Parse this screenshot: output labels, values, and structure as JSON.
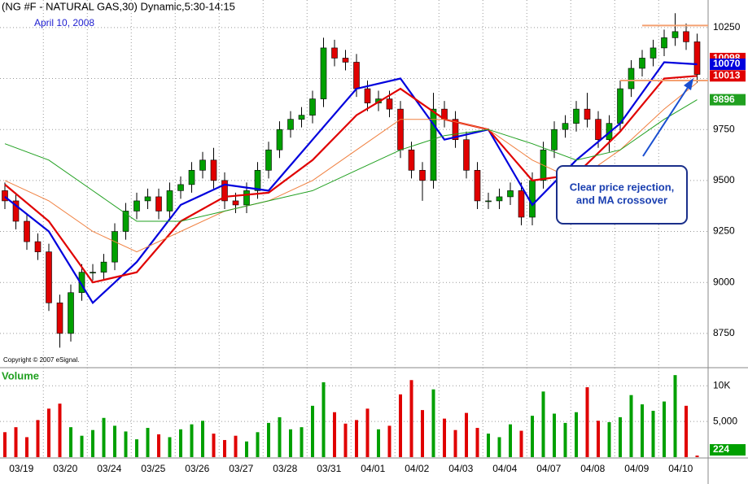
{
  "chart_data": {
    "type": "candlestick",
    "title": "(NG #F - NATURAL GAS,30) Dynamic,5:30-14:15",
    "date_label": "April 10, 2008",
    "copyright": "Copyright © 2007 eSignal.",
    "annotation": [
      "Clear price rejection,",
      "and MA crossover"
    ],
    "categories": [
      null,
      null,
      "03/19",
      null,
      null,
      null,
      "03/20",
      null,
      null,
      null,
      "03/24",
      null,
      null,
      null,
      "03/25",
      null,
      null,
      null,
      "03/26",
      null,
      null,
      null,
      "03/27",
      null,
      null,
      null,
      "03/28",
      null,
      null,
      null,
      "03/31",
      null,
      null,
      null,
      "04/01",
      null,
      null,
      null,
      "04/02",
      null,
      null,
      null,
      "04/03",
      null,
      null,
      null,
      "04/04",
      null,
      null,
      null,
      "04/07",
      null,
      null,
      null,
      "04/08",
      null,
      null,
      null,
      "04/09",
      null,
      null,
      null,
      "04/10",
      null
    ],
    "open": [
      9450,
      9400,
      9300,
      9200,
      9150,
      8900,
      8750,
      8950,
      9050,
      9050,
      9100,
      9250,
      9350,
      9400,
      9420,
      9350,
      9450,
      9480,
      9550,
      9600,
      9500,
      9400,
      9380,
      9450,
      9550,
      9650,
      9750,
      9800,
      9820,
      9900,
      10150,
      10100,
      10080,
      9950,
      9880,
      9900,
      9850,
      9650,
      9550,
      9500,
      9850,
      9800,
      9700,
      9550,
      9400,
      9400,
      9420,
      9450,
      9320,
      9500,
      9650,
      9750,
      9780,
      9850,
      9800,
      9700,
      9780,
      9950,
      10050,
      10100,
      10150,
      10200,
      10230,
      10180
    ],
    "high": [
      9490,
      9440,
      9340,
      9240,
      9190,
      8940,
      8990,
      9090,
      9090,
      9140,
      9290,
      9390,
      9440,
      9460,
      9460,
      9490,
      9520,
      9590,
      9640,
      9660,
      9540,
      9440,
      9490,
      9590,
      9690,
      9790,
      9840,
      9860,
      9940,
      10200,
      10190,
      10140,
      10120,
      9990,
      9940,
      9940,
      9890,
      9690,
      9590,
      9930,
      9890,
      9840,
      9740,
      9590,
      9440,
      9460,
      9490,
      9490,
      9540,
      9690,
      9790,
      9820,
      9890,
      9930,
      9840,
      9820,
      9990,
      10090,
      10140,
      10190,
      10240,
      10320,
      10270,
      10220
    ],
    "low": [
      9360,
      9260,
      9160,
      9110,
      8860,
      8680,
      8710,
      8910,
      9010,
      9010,
      9060,
      9210,
      9310,
      9360,
      9310,
      9310,
      9410,
      9440,
      9510,
      9460,
      9360,
      9340,
      9340,
      9410,
      9510,
      9610,
      9710,
      9760,
      9780,
      9860,
      10060,
      10040,
      9910,
      9840,
      9840,
      9810,
      9610,
      9510,
      9400,
      9460,
      9760,
      9660,
      9510,
      9360,
      9360,
      9360,
      9380,
      9280,
      9280,
      9460,
      9610,
      9710,
      9740,
      9760,
      9660,
      9640,
      9740,
      9910,
      10010,
      10060,
      10110,
      10160,
      10140,
      9980
    ],
    "close": [
      9400,
      9300,
      9200,
      9150,
      8900,
      8750,
      8950,
      9050,
      9050,
      9100,
      9250,
      9350,
      9400,
      9420,
      9350,
      9450,
      9480,
      9550,
      9600,
      9500,
      9400,
      9380,
      9450,
      9550,
      9650,
      9750,
      9800,
      9820,
      9900,
      10150,
      10100,
      10080,
      9950,
      9880,
      9900,
      9850,
      9650,
      9550,
      9500,
      9850,
      9800,
      9700,
      9550,
      9400,
      9400,
      9420,
      9450,
      9320,
      9500,
      9650,
      9750,
      9780,
      9850,
      9800,
      9700,
      9780,
      9950,
      10050,
      10100,
      10150,
      10200,
      10230,
      10180,
      10020
    ],
    "up_color": "#00a000",
    "down_color": "#e00000",
    "ylim": [
      8590,
      10385
    ],
    "yticks": [
      8750,
      9000,
      9250,
      9500,
      9750,
      10000,
      10250
    ],
    "grid": true,
    "last_price": 10098,
    "x": [
      0,
      4,
      8,
      12,
      16,
      20,
      24,
      28,
      32,
      36,
      40,
      44,
      48,
      52,
      56,
      60,
      63
    ],
    "series": [
      {
        "color": "#0000dd",
        "end_box": true,
        "values": [
          9420,
          9250,
          8900,
          9100,
          9380,
          9480,
          9450,
          9700,
          9950,
          10000,
          9700,
          9750,
          9380,
          9600,
          9780,
          10080,
          10070
        ]
      },
      {
        "color": "#e00000",
        "end_box": true,
        "values": [
          9480,
          9300,
          9000,
          9050,
          9300,
          9420,
          9440,
          9600,
          9820,
          9950,
          9800,
          9750,
          9500,
          9530,
          9740,
          10000,
          10013
        ]
      },
      {
        "color": "#f08040",
        "end_box": false,
        "values": [
          9500,
          9400,
          9250,
          9150,
          9250,
          9350,
          9400,
          9500,
          9650,
          9800,
          9800,
          9750,
          9600,
          9500,
          9650,
          9850,
          9980
        ]
      },
      {
        "color": "#20a020",
        "end_box": true,
        "values": [
          9680,
          9600,
          9450,
          9300,
          9300,
          9350,
          9400,
          9450,
          9550,
          9650,
          9720,
          9750,
          9680,
          9600,
          9650,
          9800,
          9896
        ]
      }
    ],
    "levels": [
      {
        "value": 10260,
        "from": 58,
        "color": "#f4a070"
      },
      {
        "value": 9990,
        "from": 56,
        "color": "#f4a070"
      }
    ],
    "volume": {
      "label": "Volume",
      "ylim": [
        0,
        12200
      ],
      "yticks": [
        {
          "value": 10000,
          "label": "10K"
        },
        {
          "value": 5000,
          "label": "5,000"
        }
      ],
      "values": [
        3500,
        4200,
        2800,
        5200,
        6800,
        7500,
        4200,
        3000,
        3800,
        5500,
        4400,
        3600,
        2500,
        4100,
        3200,
        2800,
        3900,
        4600,
        5100,
        3300,
        2400,
        3000,
        2200,
        3500,
        4800,
        5600,
        3900,
        4200,
        7200,
        10500,
        6300,
        4700,
        5200,
        6800,
        3900,
        4400,
        8800,
        10800,
        6600,
        9500,
        5400,
        3800,
        6200,
        4100,
        3300,
        2800,
        4600,
        3700,
        5800,
        9200,
        6100,
        4800,
        6300,
        9800,
        5100,
        4900,
        5600,
        8700,
        7400,
        6500,
        7800,
        11500,
        7200,
        224
      ]
    }
  }
}
